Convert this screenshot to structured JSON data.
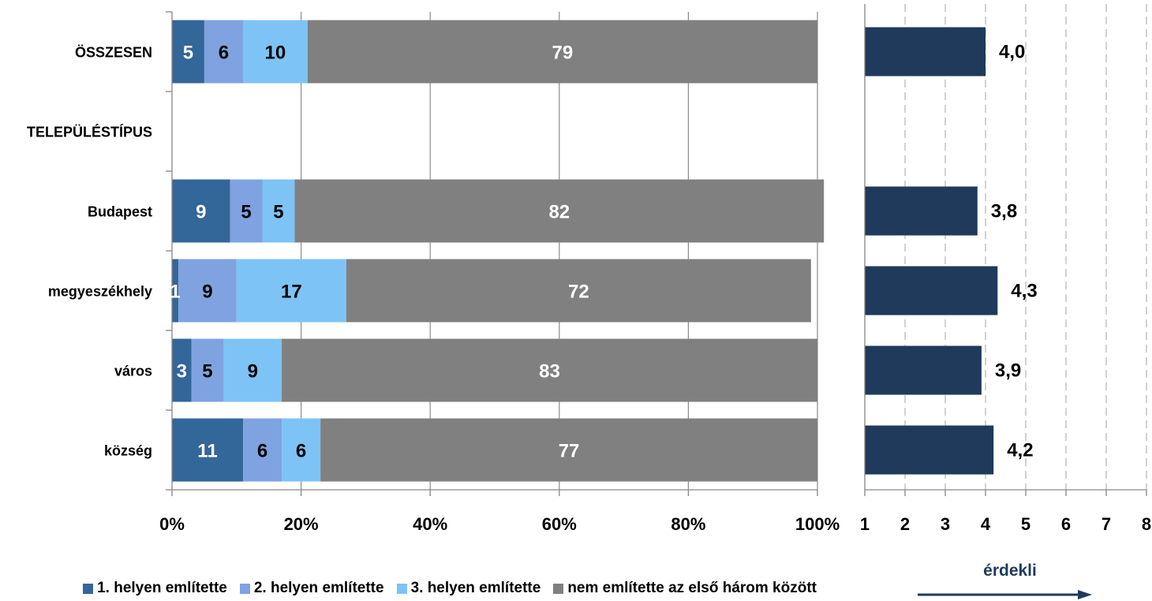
{
  "chart_data": [
    {
      "type": "bar",
      "orientation": "horizontal",
      "stacked": true,
      "categories": [
        "ÖSSZESEN",
        "TELEPÜLÉSTÍPUS",
        "Budapest",
        "megyeszékhely",
        "város",
        "község"
      ],
      "series": [
        {
          "name": "1. helyen említette",
          "color": "#336699",
          "values": [
            5,
            null,
            9,
            1,
            3,
            11
          ]
        },
        {
          "name": "2. helyen említette",
          "color": "#7FA3E0",
          "values": [
            6,
            null,
            5,
            9,
            5,
            6
          ]
        },
        {
          "name": "3. helyen említette",
          "color": "#7DC3F5",
          "values": [
            10,
            null,
            5,
            17,
            9,
            6
          ]
        },
        {
          "name": "nem említette az első három között",
          "color": "#808080",
          "values": [
            79,
            null,
            82,
            72,
            83,
            77
          ]
        }
      ],
      "xlim": [
        0,
        100
      ],
      "xticks": [
        "0%",
        "20%",
        "40%",
        "60%",
        "80%",
        "100%"
      ],
      "grid": true
    },
    {
      "type": "bar",
      "orientation": "horizontal",
      "categories": [
        "ÖSSZESEN",
        "TELEPÜLÉSTÍPUS",
        "Budapest",
        "megyeszékhely",
        "város",
        "község"
      ],
      "values": [
        4.0,
        null,
        3.8,
        4.3,
        3.9,
        4.2
      ],
      "value_labels": [
        "4,0",
        "",
        "3,8",
        "4,3",
        "3,9",
        "4,2"
      ],
      "color": "#1F3A5A",
      "xlim": [
        1,
        8
      ],
      "xticks": [
        "1",
        "2",
        "3",
        "4",
        "5",
        "6",
        "7",
        "8"
      ],
      "grid": "dashed",
      "axis_caption": "érdekli"
    }
  ]
}
